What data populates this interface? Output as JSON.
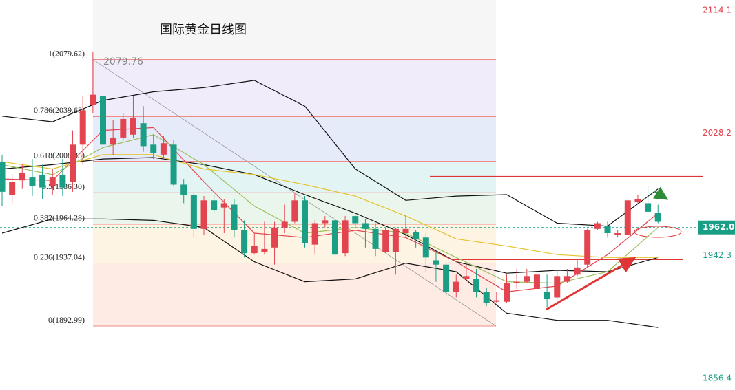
{
  "chart_data": {
    "type": "candlestick",
    "title": "国际黄金日线图",
    "ylim": [
      1848.2,
      2121.3
    ],
    "yticks": [
      2114.1,
      2028.2,
      1942.3,
      1856.4
    ],
    "last_price": {
      "value": 1962.0,
      "label": "1962.0"
    },
    "up_color": "#e2454f",
    "down_color": "#1a9e85",
    "candles": {
      "open": [
        2008,
        1985,
        1995,
        1997,
        1999,
        1991,
        1999,
        1994,
        2020,
        2048,
        2054,
        2020,
        2025,
        2027,
        2035,
        2020,
        2013,
        2020,
        1992,
        1985,
        1961,
        1981,
        1976,
        1978,
        1960,
        1944,
        1945,
        1948,
        1962,
        1966,
        1981,
        1950,
        1965,
        1967,
        1944,
        1970,
        1965,
        1961,
        1945,
        1945,
        1958,
        1959,
        1955,
        1939,
        1936,
        1917,
        1926,
        1926,
        1917,
        1910,
        1910,
        1923,
        1924,
        1919,
        1917,
        1913,
        1924,
        1929,
        1936,
        1961,
        1963,
        1957,
        1957,
        1980,
        1979,
        1972
      ],
      "high": [
        2013,
        1999,
        2006,
        2010,
        2006,
        2003,
        2010,
        2030,
        2054,
        2085,
        2059,
        2037,
        2042,
        2054,
        2047,
        2027,
        2026,
        2023,
        1996,
        1986,
        1984,
        1985,
        1982,
        1982,
        1967,
        1958,
        1966,
        1966,
        1978,
        1986,
        1984,
        1967,
        1970,
        1970,
        1970,
        1971,
        1968,
        1965,
        1962,
        1962,
        1971,
        1960,
        1958,
        1945,
        1938,
        1929,
        1936,
        1933,
        1920,
        1917,
        1929,
        1933,
        1933,
        1932,
        1929,
        1932,
        1933,
        1940,
        1961,
        1966,
        1966,
        1960,
        1982,
        1985,
        1991,
        1978
      ],
      "low": [
        1977,
        1979,
        1989,
        1984,
        1982,
        1985,
        1984,
        1987,
        2006,
        2042,
        2003,
        2013,
        2023,
        2025,
        2015,
        2010,
        2010,
        1991,
        1979,
        1955,
        1957,
        1972,
        1958,
        1955,
        1941,
        1943,
        1943,
        1936,
        1958,
        1965,
        1948,
        1943,
        1962,
        1942,
        1942,
        1962,
        1948,
        1942,
        1944,
        1929,
        1955,
        1948,
        1931,
        1924,
        1914,
        1913,
        1925,
        1913,
        1907,
        1909,
        1909,
        1919,
        1923,
        1918,
        1906,
        1912,
        1923,
        1928,
        1934,
        1960,
        1955,
        1955,
        1957,
        1979,
        1972,
        1965
      ],
      "close": [
        1987,
        1994,
        2000,
        1991,
        1990,
        1997,
        1990,
        2020,
        2044,
        2055,
        2020,
        2025,
        2038,
        2039,
        2019,
        2014,
        2021,
        1992,
        1985,
        1961,
        1981,
        1974,
        1979,
        1960,
        1944,
        1949,
        1947,
        1962,
        1966,
        1981,
        1951,
        1965,
        1967,
        1943,
        1967,
        1965,
        1961,
        1947,
        1960,
        1961,
        1961,
        1954,
        1941,
        1936,
        1917,
        1924,
        1928,
        1917,
        1909,
        1911,
        1923,
        1924,
        1928,
        1929,
        1912,
        1928,
        1928,
        1934,
        1960,
        1965,
        1958,
        1958,
        1981,
        1982,
        1973,
        1966
      ]
    },
    "lines": [
      {
        "color": "#111111",
        "x": [
          0,
          5,
          10,
          15,
          20,
          25,
          30,
          35,
          40,
          45,
          50,
          55,
          60,
          65
        ],
        "values": [
          2040,
          2036,
          2051,
          2057,
          2060,
          2065,
          2047,
          2003,
          1981,
          1984,
          1985,
          1965,
          1963,
          1989
        ]
      },
      {
        "color": "#111111",
        "x": [
          0,
          5,
          10,
          15,
          20,
          25,
          30,
          35,
          40,
          45,
          50,
          55,
          60,
          65
        ],
        "values": [
          2003,
          2006,
          2010,
          2011,
          2006,
          1999,
          1985,
          1972,
          1957,
          1938,
          1930,
          1932,
          1931,
          1941
        ]
      },
      {
        "color": "#111111",
        "x": [
          0,
          5,
          10,
          15,
          20,
          25,
          30,
          35,
          40,
          45,
          50,
          55,
          60,
          65
        ],
        "values": [
          1958,
          1968,
          1968,
          1967,
          1962,
          1938,
          1924,
          1926,
          1937,
          1931,
          1902,
          1897,
          1897,
          1892
        ]
      },
      {
        "color": "#e2454f",
        "x": [
          0,
          5,
          10,
          15,
          20,
          25,
          30,
          35,
          40,
          45,
          50,
          55,
          60,
          65
        ],
        "values": [
          1996,
          1995,
          2030,
          2032,
          1994,
          1958,
          1955,
          1960,
          1955,
          1938,
          1917,
          1921,
          1943,
          1972
        ]
      },
      {
        "color": "#9bbf5a",
        "x": [
          0,
          5,
          10,
          15,
          20,
          25,
          30,
          35,
          40,
          45,
          50,
          55,
          60,
          65
        ],
        "values": [
          2006,
          1999,
          2018,
          2027,
          2006,
          1977,
          1958,
          1962,
          1958,
          1941,
          1924,
          1923,
          1931,
          1962
        ]
      },
      {
        "color": "#e6c229",
        "x": [
          0,
          5,
          10,
          15,
          20,
          25,
          30,
          35,
          40,
          45,
          50,
          55,
          60,
          65
        ],
        "values": [
          2008,
          2003,
          2013,
          2013,
          2003,
          1999,
          1992,
          1984,
          1970,
          1954,
          1949,
          1943,
          1941,
          1941
        ]
      }
    ],
    "fib": [
      {
        "value": 2079.62,
        "label": "1(2079.62)"
      },
      {
        "value": 2039.68,
        "label": "0.786(2039.68)"
      },
      {
        "value": 2008.33,
        "label": "0.618(2008.33)"
      },
      {
        "value": 1986.3,
        "label": "0.5(1986.30)"
      },
      {
        "value": 1964.28,
        "label": "0.382(1964.28)"
      },
      {
        "value": 1937.04,
        "label": "0.236(1937.04)"
      },
      {
        "value": 1892.99,
        "label": "0(1892.99)"
      }
    ],
    "fib_colors": [
      "#f0ecf9",
      "#e6ebfa",
      "#e2f5f4",
      "#eaf6ec",
      "#fdf4e3",
      "#fdebe4"
    ],
    "peak": 2079.76,
    "hlines": [
      1997.6,
      1939.7
    ]
  }
}
